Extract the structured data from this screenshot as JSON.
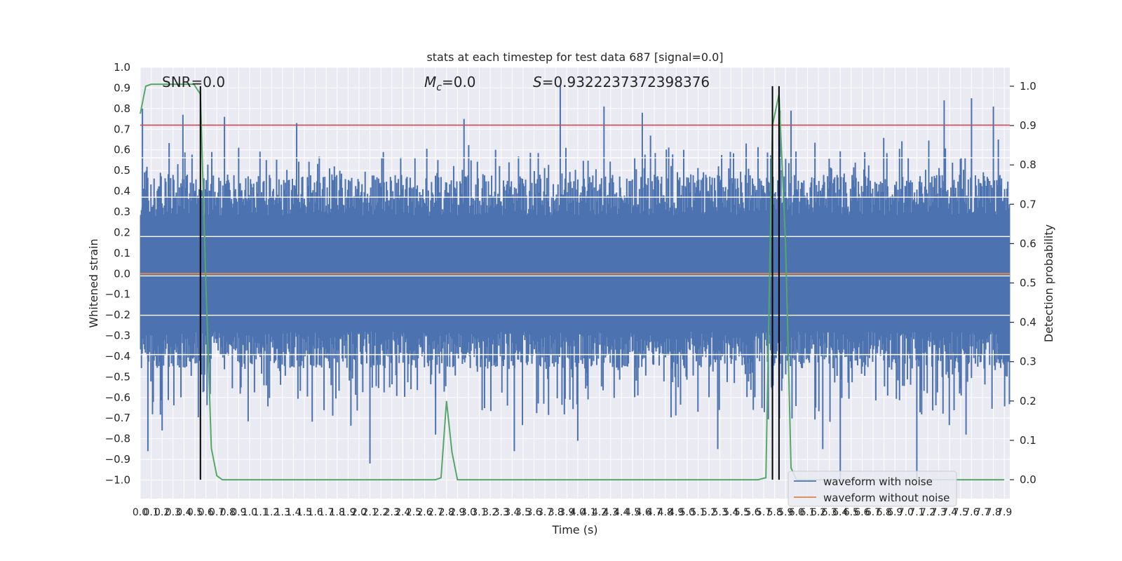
{
  "chart_data": {
    "type": "line",
    "title": "stats at each timestep for test data 687 [signal=0.0]",
    "xlabel": "Time (s)",
    "ylabel": "Whitened strain",
    "y2label": "Detection probability",
    "xlim": [
      0.0,
      7.95
    ],
    "ylim": [
      -1.09,
      1.0
    ],
    "y2lim": [
      -0.048,
      1.048
    ],
    "grid": true,
    "x_ticks": [
      "0.0",
      "0.1",
      "0.2",
      "0.3",
      "0.4",
      "0.5",
      "0.6",
      "0.7",
      "0.8",
      "0.9",
      "1.0",
      "1.1",
      "1.2",
      "1.3",
      "1.4",
      "1.5",
      "1.6",
      "1.7",
      "1.8",
      "1.9",
      "2.0",
      "2.1",
      "2.2",
      "2.3",
      "2.4",
      "2.5",
      "2.6",
      "2.7",
      "2.8",
      "2.9",
      "3.0",
      "3.1",
      "3.2",
      "3.3",
      "3.4",
      "3.5",
      "3.6",
      "3.7",
      "3.8",
      "3.9",
      "4.0",
      "4.1",
      "4.2",
      "4.3",
      "4.4",
      "4.5",
      "4.6",
      "4.7",
      "4.8",
      "4.9",
      "5.0",
      "5.1",
      "5.2",
      "5.3",
      "5.4",
      "5.5",
      "5.6",
      "5.7",
      "5.8",
      "5.9",
      "6.0",
      "6.1",
      "6.2",
      "6.3",
      "6.4",
      "6.5",
      "6.6",
      "6.7",
      "6.8",
      "6.9",
      "7.0",
      "7.1",
      "7.2",
      "7.3",
      "7.4",
      "7.5",
      "7.6",
      "7.7",
      "7.8",
      "7.9"
    ],
    "y_ticks": [
      "1.0",
      "0.9",
      "0.8",
      "0.7",
      "0.6",
      "0.5",
      "0.4",
      "0.3",
      "0.2",
      "0.1",
      "0.0",
      "−0.1",
      "−0.2",
      "−0.3",
      "−0.4",
      "−0.5",
      "−0.6",
      "−0.7",
      "−0.8",
      "−0.9",
      "−1.0"
    ],
    "y2_ticks": [
      "1.0",
      "0.9",
      "0.8",
      "0.7",
      "0.6",
      "0.5",
      "0.4",
      "0.3",
      "0.2",
      "0.1",
      "0.0"
    ],
    "annotations": {
      "snr": "SNR=0.0",
      "mc_symbol": "M",
      "mc_sub": "c",
      "mc_value": "=0.0",
      "s_symbol": "S",
      "s_value": "=0.9322237372398376"
    },
    "threshold_strain": 0.72,
    "noisy_waveform": {
      "name": "waveform with noise",
      "color": "#4c72b0",
      "notable_peaks": [
        {
          "x": 0.02,
          "y": 0.8
        },
        {
          "x": 0.39,
          "y": 0.77
        },
        {
          "x": 0.77,
          "y": 0.76
        },
        {
          "x": 1.43,
          "y": 0.73
        },
        {
          "x": 2.96,
          "y": 0.75
        },
        {
          "x": 3.84,
          "y": 0.91
        },
        {
          "x": 4.24,
          "y": 0.81
        },
        {
          "x": 4.59,
          "y": 0.78
        },
        {
          "x": 5.85,
          "y": 0.79
        },
        {
          "x": 5.95,
          "y": 0.79
        },
        {
          "x": 7.35,
          "y": 0.84
        },
        {
          "x": 7.6,
          "y": 0.85
        },
        {
          "x": 7.8,
          "y": 0.81
        }
      ],
      "notable_troughs": [
        {
          "x": 0.07,
          "y": -0.86
        },
        {
          "x": 0.2,
          "y": -0.76
        },
        {
          "x": 2.1,
          "y": -0.92
        },
        {
          "x": 2.7,
          "y": -0.78
        },
        {
          "x": 3.42,
          "y": -0.86
        },
        {
          "x": 4.0,
          "y": -0.81
        },
        {
          "x": 5.28,
          "y": -0.85
        },
        {
          "x": 6.24,
          "y": -0.85
        },
        {
          "x": 6.4,
          "y": -1.0
        },
        {
          "x": 7.1,
          "y": -1.0
        },
        {
          "x": 7.55,
          "y": -0.78
        }
      ]
    },
    "clean_waveform": {
      "name": "waveform without noise",
      "color": "#dd8452",
      "x": [
        0.0,
        7.95
      ],
      "y": [
        0.0,
        0.0
      ]
    },
    "detection_probability": {
      "color": "#55a868",
      "x": [
        0.0,
        0.05,
        0.1,
        0.3,
        0.49,
        0.55,
        0.6,
        0.65,
        0.7,
        0.75,
        2.7,
        2.75,
        2.8,
        2.85,
        2.9,
        2.95,
        5.65,
        5.72,
        5.78,
        5.84,
        5.9,
        5.95,
        6.0,
        7.9
      ],
      "y": [
        0.93,
        1.0,
        1.005,
        1.005,
        1.005,
        0.98,
        0.5,
        0.08,
        0.01,
        0.0,
        0.0,
        0.005,
        0.2,
        0.07,
        0.0,
        0.0,
        0.0,
        0.005,
        0.9,
        0.98,
        0.6,
        0.03,
        0.0,
        0.0
      ]
    },
    "threshold_probability": {
      "values": [
        0.818,
        0.718,
        0.618,
        0.518,
        0.418,
        0.318
      ],
      "note": "light separator lines on the secondary axis"
    },
    "marker_lines_x": [
      0.55,
      5.78,
      5.84
    ],
    "legend": {
      "placement": "lower-right",
      "entries": [
        "waveform with noise",
        "waveform without noise"
      ]
    }
  }
}
